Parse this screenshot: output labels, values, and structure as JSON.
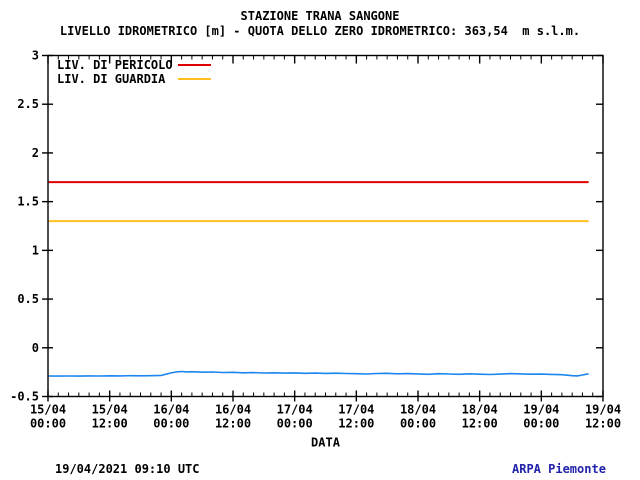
{
  "title": "STAZIONE TRANA SANGONE",
  "subtitle": "LIVELLO IDROMETRICO [m] - QUOTA DELLO ZERO IDROMETRICO: 363,54  m s.l.m.",
  "footer": {
    "timestamp": "19/04/2021 09:10 UTC",
    "credit": "ARPA Piemonte"
  },
  "colors": {
    "danger": "#e00000",
    "warning": "#ffc020",
    "level": "#1c86ee",
    "credit_text": "#2222aa",
    "axis": "#000000",
    "background": "#ffffff"
  },
  "chart_data": {
    "type": "line",
    "title": "STAZIONE TRANA SANGONE",
    "subtitle": "LIVELLO IDROMETRICO [m] - QUOTA DELLO ZERO IDROMETRICO: 363,54  m s.l.m.",
    "xlabel": "DATA",
    "ylabel": "",
    "ylim": [
      -0.5,
      3
    ],
    "ytick_step": 0.5,
    "grid": false,
    "legend_position": "top-left-inside",
    "x_total_hours": 108,
    "x_major_every_hours": 12,
    "x_minor_every_hours": 2,
    "x_tick_labels": [
      {
        "date": "15/04",
        "time": "00:00"
      },
      {
        "date": "15/04",
        "time": "12:00"
      },
      {
        "date": "16/04",
        "time": "00:00"
      },
      {
        "date": "16/04",
        "time": "12:00"
      },
      {
        "date": "17/04",
        "time": "00:00"
      },
      {
        "date": "17/04",
        "time": "12:00"
      },
      {
        "date": "18/04",
        "time": "00:00"
      },
      {
        "date": "18/04",
        "time": "12:00"
      },
      {
        "date": "19/04",
        "time": "00:00"
      },
      {
        "date": "19/04",
        "time": "12:00"
      }
    ],
    "legend": [
      {
        "label": "LIV. DI PERICOLO",
        "color": "#e00000"
      },
      {
        "label": "LIV. DI GUARDIA",
        "color": "#ffc020"
      }
    ],
    "series": [
      {
        "name": "LIV. DI PERICOLO",
        "color": "#e00000",
        "constant_value": 1.7,
        "x_start_hours": 0,
        "x_end_hours": 105.2
      },
      {
        "name": "LIV. DI GUARDIA",
        "color": "#ffc020",
        "constant_value": 1.3,
        "x_start_hours": 0,
        "x_end_hours": 105.2
      },
      {
        "name": "LIVELLO IDROMETRICO",
        "color": "#1c86ee",
        "points": [
          [
            0,
            -0.29
          ],
          [
            2,
            -0.291
          ],
          [
            4,
            -0.29
          ],
          [
            6,
            -0.291
          ],
          [
            8,
            -0.289
          ],
          [
            10,
            -0.29
          ],
          [
            12,
            -0.288
          ],
          [
            14,
            -0.289
          ],
          [
            16,
            -0.287
          ],
          [
            18,
            -0.288
          ],
          [
            20,
            -0.286
          ],
          [
            22,
            -0.283
          ],
          [
            24,
            -0.258
          ],
          [
            25,
            -0.247
          ],
          [
            26,
            -0.243
          ],
          [
            27,
            -0.247
          ],
          [
            28,
            -0.245
          ],
          [
            30,
            -0.251
          ],
          [
            32,
            -0.249
          ],
          [
            34,
            -0.254
          ],
          [
            36,
            -0.252
          ],
          [
            38,
            -0.257
          ],
          [
            40,
            -0.255
          ],
          [
            42,
            -0.259
          ],
          [
            44,
            -0.257
          ],
          [
            46,
            -0.26
          ],
          [
            48,
            -0.258
          ],
          [
            50,
            -0.262
          ],
          [
            52,
            -0.26
          ],
          [
            54,
            -0.263
          ],
          [
            56,
            -0.261
          ],
          [
            58,
            -0.264
          ],
          [
            60,
            -0.266
          ],
          [
            62,
            -0.269
          ],
          [
            64,
            -0.264
          ],
          [
            66,
            -0.262
          ],
          [
            68,
            -0.267
          ],
          [
            70,
            -0.265
          ],
          [
            72,
            -0.268
          ],
          [
            74,
            -0.272
          ],
          [
            76,
            -0.266
          ],
          [
            78,
            -0.269
          ],
          [
            80,
            -0.272
          ],
          [
            82,
            -0.267
          ],
          [
            84,
            -0.271
          ],
          [
            86,
            -0.274
          ],
          [
            88,
            -0.27
          ],
          [
            90,
            -0.265
          ],
          [
            92,
            -0.268
          ],
          [
            94,
            -0.271
          ],
          [
            96,
            -0.27
          ],
          [
            98,
            -0.273
          ],
          [
            100,
            -0.276
          ],
          [
            102,
            -0.286
          ],
          [
            103,
            -0.289
          ],
          [
            104,
            -0.279
          ],
          [
            105.2,
            -0.267
          ]
        ]
      }
    ]
  }
}
